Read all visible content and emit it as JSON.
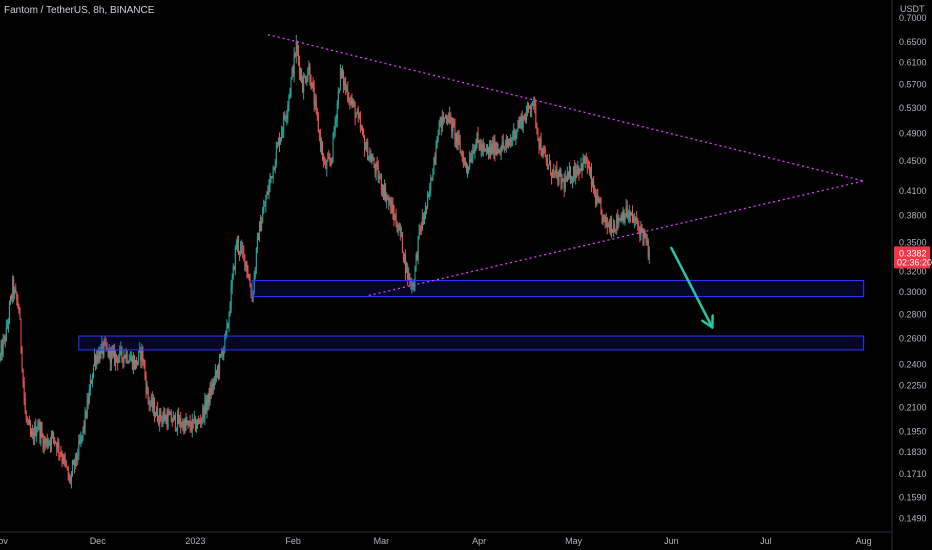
{
  "header": {
    "title": "Fantom / TetherUS, 8h, BINANCE"
  },
  "colors": {
    "background": "#000000",
    "up": "#26a69a",
    "down": "#ef5350",
    "trendline": "#e040fb",
    "zone_border": "#2d38ff",
    "zone_fill": "rgba(30,40,200,0.18)",
    "arrow": "#26c6a6",
    "price_tag": "#f23645",
    "axis_text": "#b2b5be"
  },
  "chart_data": {
    "type": "candlestick",
    "symbol": "Fantom / TetherUS",
    "interval": "8h",
    "exchange": "BINANCE",
    "y_unit": "USDT",
    "y_scale": "log",
    "ylim": [
      0.143,
      0.74
    ],
    "xlim": [
      "2022-10-31",
      "2023-08-10"
    ],
    "x_ticks": [
      {
        "date": "2022-11-01",
        "label": "ov"
      },
      {
        "date": "2022-12-01",
        "label": "Dec"
      },
      {
        "date": "2023-01-01",
        "label": "2023"
      },
      {
        "date": "2023-02-01",
        "label": "Feb"
      },
      {
        "date": "2023-03-01",
        "label": "Mar"
      },
      {
        "date": "2023-04-01",
        "label": "Apr"
      },
      {
        "date": "2023-05-01",
        "label": "May"
      },
      {
        "date": "2023-06-01",
        "label": "Jun"
      },
      {
        "date": "2023-07-01",
        "label": "Jul"
      },
      {
        "date": "2023-08-01",
        "label": "Aug"
      }
    ],
    "y_ticks": [
      "0.7000",
      "0.6500",
      "0.6100",
      "0.5700",
      "0.5300",
      "0.4900",
      "0.4500",
      "0.4100",
      "0.3800",
      "0.3500",
      "0.3200",
      "0.3000",
      "0.2800",
      "0.2600",
      "0.2400",
      "0.2250",
      "0.2100",
      "0.1950",
      "0.1830",
      "0.1710",
      "0.1590",
      "0.1490"
    ],
    "last_price": {
      "value": 0.3382,
      "label": "0.3382",
      "countdown": "02:36:20"
    },
    "price_path": [
      [
        "2022-10-31",
        0.245
      ],
      [
        "2022-11-02",
        0.265
      ],
      [
        "2022-11-04",
        0.305
      ],
      [
        "2022-11-06",
        0.285
      ],
      [
        "2022-11-08",
        0.205
      ],
      [
        "2022-11-10",
        0.19
      ],
      [
        "2022-11-12",
        0.2
      ],
      [
        "2022-11-14",
        0.188
      ],
      [
        "2022-11-17",
        0.192
      ],
      [
        "2022-11-20",
        0.18
      ],
      [
        "2022-11-22",
        0.167
      ],
      [
        "2022-11-24",
        0.178
      ],
      [
        "2022-11-26",
        0.192
      ],
      [
        "2022-11-28",
        0.215
      ],
      [
        "2022-11-30",
        0.245
      ],
      [
        "2022-12-03",
        0.252
      ],
      [
        "2022-12-06",
        0.245
      ],
      [
        "2022-12-10",
        0.248
      ],
      [
        "2022-12-13",
        0.24
      ],
      [
        "2022-12-15",
        0.25
      ],
      [
        "2022-12-17",
        0.215
      ],
      [
        "2022-12-20",
        0.205
      ],
      [
        "2022-12-25",
        0.202
      ],
      [
        "2022-12-30",
        0.198
      ],
      [
        "2023-01-02",
        0.2
      ],
      [
        "2023-01-05",
        0.215
      ],
      [
        "2023-01-08",
        0.235
      ],
      [
        "2023-01-11",
        0.265
      ],
      [
        "2023-01-14",
        0.35
      ],
      [
        "2023-01-17",
        0.33
      ],
      [
        "2023-01-19",
        0.295
      ],
      [
        "2023-01-21",
        0.36
      ],
      [
        "2023-01-24",
        0.41
      ],
      [
        "2023-01-27",
        0.47
      ],
      [
        "2023-01-30",
        0.53
      ],
      [
        "2023-02-02",
        0.64
      ],
      [
        "2023-02-04",
        0.57
      ],
      [
        "2023-02-06",
        0.6
      ],
      [
        "2023-02-08",
        0.53
      ],
      [
        "2023-02-11",
        0.44
      ],
      [
        "2023-02-13",
        0.45
      ],
      [
        "2023-02-16",
        0.59
      ],
      [
        "2023-02-18",
        0.56
      ],
      [
        "2023-02-21",
        0.52
      ],
      [
        "2023-02-24",
        0.47
      ],
      [
        "2023-02-27",
        0.44
      ],
      [
        "2023-03-03",
        0.4
      ],
      [
        "2023-03-07",
        0.36
      ],
      [
        "2023-03-09",
        0.32
      ],
      [
        "2023-03-11",
        0.305
      ],
      [
        "2023-03-13",
        0.36
      ],
      [
        "2023-03-16",
        0.4
      ],
      [
        "2023-03-19",
        0.5
      ],
      [
        "2023-03-22",
        0.52
      ],
      [
        "2023-03-25",
        0.48
      ],
      [
        "2023-03-28",
        0.44
      ],
      [
        "2023-03-31",
        0.48
      ],
      [
        "2023-04-03",
        0.46
      ],
      [
        "2023-04-06",
        0.47
      ],
      [
        "2023-04-10",
        0.47
      ],
      [
        "2023-04-13",
        0.5
      ],
      [
        "2023-04-16",
        0.52
      ],
      [
        "2023-04-18",
        0.545
      ],
      [
        "2023-04-20",
        0.48
      ],
      [
        "2023-04-22",
        0.45
      ],
      [
        "2023-04-25",
        0.43
      ],
      [
        "2023-04-28",
        0.42
      ],
      [
        "2023-05-02",
        0.44
      ],
      [
        "2023-05-05",
        0.45
      ],
      [
        "2023-05-08",
        0.4
      ],
      [
        "2023-05-11",
        0.37
      ],
      [
        "2023-05-14",
        0.37
      ],
      [
        "2023-05-17",
        0.385
      ],
      [
        "2023-05-20",
        0.375
      ],
      [
        "2023-05-23",
        0.36
      ],
      [
        "2023-05-25",
        0.338
      ]
    ],
    "annotations": {
      "triangle_upper": {
        "from": [
          "2023-01-24",
          0.665
        ],
        "to": [
          "2023-08-01",
          0.423
        ]
      },
      "triangle_lower": {
        "from": [
          "2023-02-25",
          0.297
        ],
        "to": [
          "2023-08-01",
          0.423
        ]
      },
      "zones": [
        {
          "x0": "2023-01-19",
          "x1": "2023-08-01",
          "y0": 0.296,
          "y1": 0.311
        },
        {
          "x0": "2022-11-25",
          "x1": "2023-08-01",
          "y0": 0.251,
          "y1": 0.262
        }
      ],
      "arrow": {
        "from": [
          "2023-06-01",
          0.344
        ],
        "to": [
          "2023-06-14",
          0.269
        ]
      }
    }
  }
}
